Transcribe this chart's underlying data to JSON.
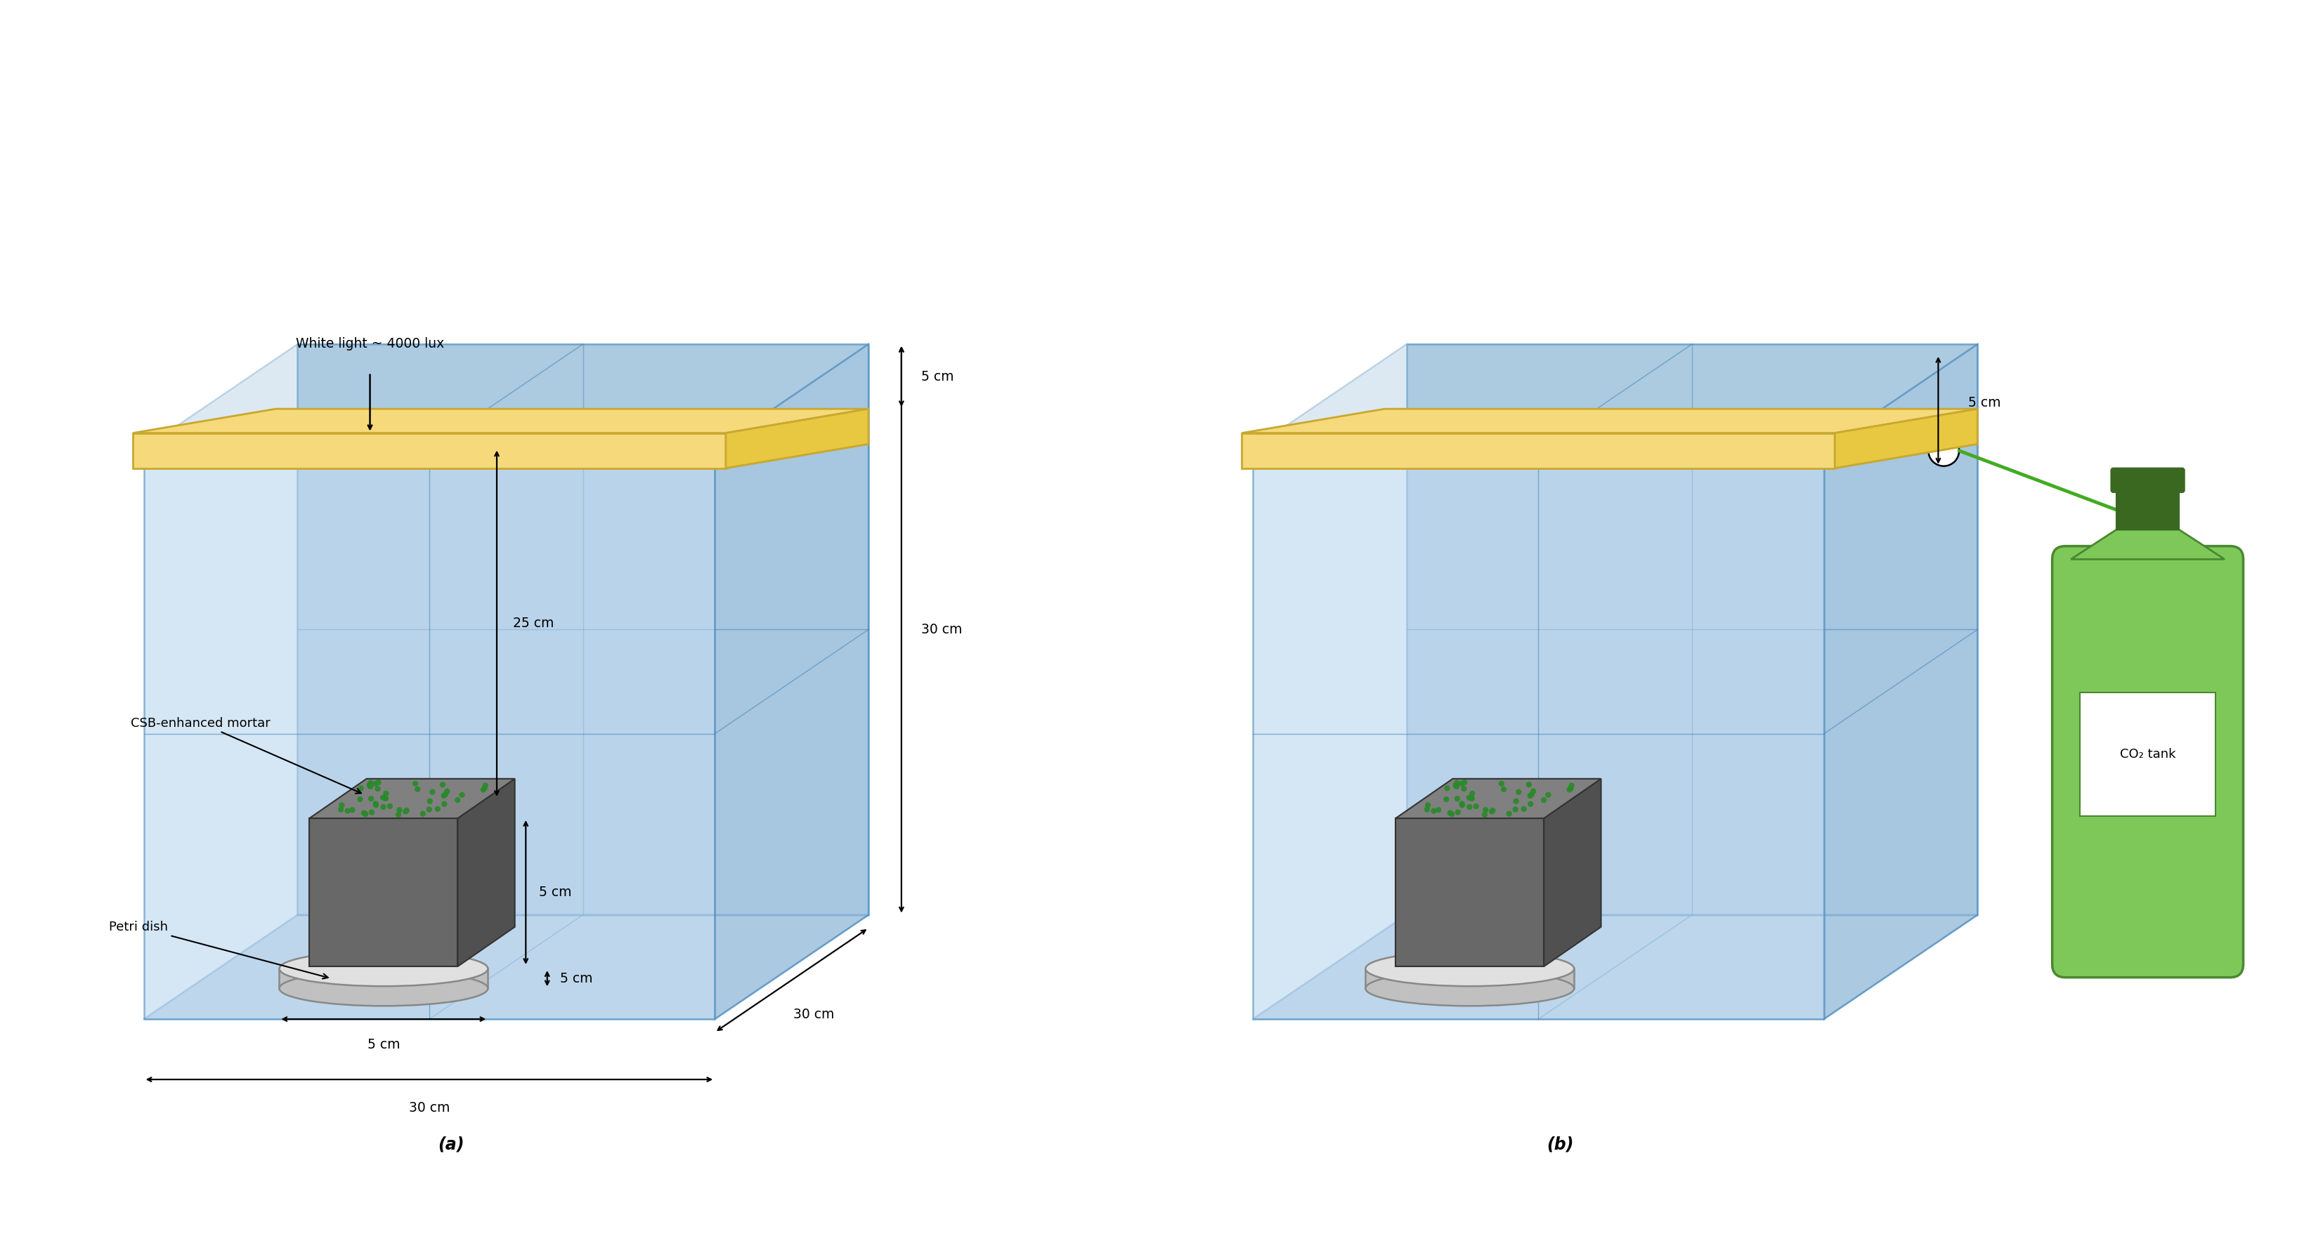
{
  "bg_color": "#ffffff",
  "box_face_color": "#b8d4ee",
  "box_edge_color": "#4488bb",
  "box_back_color": "#8ab4d4",
  "box_side_color": "#9abedd",
  "light_panel_color": "#f5d97a",
  "light_panel_edge": "#c8a830",
  "light_panel_bottom": "#e8c840",
  "mortar_top_color": "#808080",
  "mortar_side_color": "#686868",
  "mortar_dark_color": "#505050",
  "petri_color": "#c0c0c0",
  "petri_edge_color": "#888888",
  "petri_top_color": "#e0e0e0",
  "green_dot_color": "#2a8a2a",
  "tank_body_color": "#7ec85a",
  "tank_dark_color": "#4a8830",
  "tank_neck_color": "#3a6820",
  "arrow_color": "#000000",
  "label_a": "(a)",
  "label_b": "(b)",
  "text_white_light": "White light ~ 4000 lux",
  "text_5cm_top": "5 cm",
  "text_30cm_right": "30 cm",
  "text_30cm_depth": "30 cm",
  "text_30cm_bottom": "30 cm",
  "text_25cm": "25 cm",
  "text_5cm_mortar": "5 cm",
  "text_5cm_petri_h": "5 cm",
  "text_5cm_petri_d": "5 cm",
  "text_csb": "CSB-enhanced mortar",
  "text_petri": "Petri dish",
  "text_5cm_b": "5 cm",
  "text_co2": "CO₂ tank"
}
